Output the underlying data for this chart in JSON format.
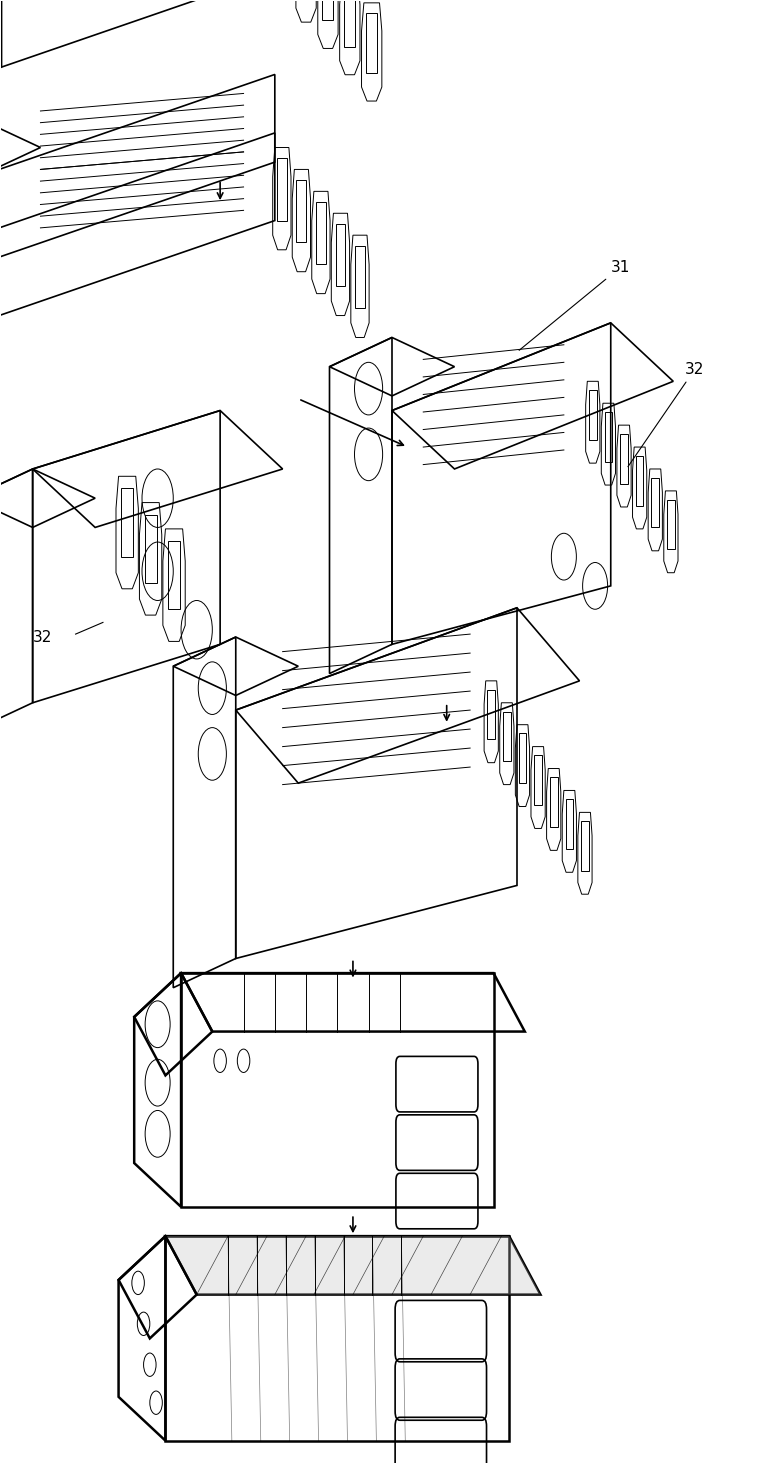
{
  "bg_color": "#ffffff",
  "line_color": "#000000",
  "fig_width": 7.84,
  "fig_height": 14.64,
  "dpi": 100
}
